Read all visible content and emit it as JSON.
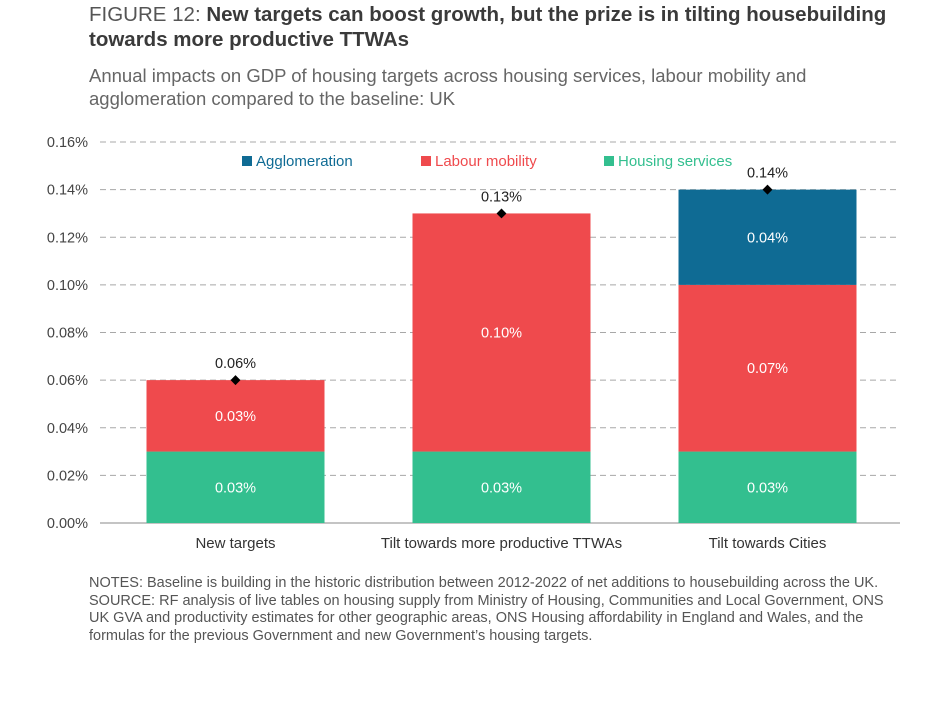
{
  "figure": {
    "prefix": "FIGURE 12: ",
    "title": "New targets can boost growth, but the prize is in tilting housebuilding towards more productive TTWAs",
    "subtitle": "Annual impacts on GDP of housing targets across housing services, labour mobility and agglomeration compared to the baseline: UK"
  },
  "chart_data": {
    "type": "bar",
    "stacked": true,
    "categories": [
      "New targets",
      "Tilt towards more productive TTWAs",
      "Tilt towards Cities"
    ],
    "series": [
      {
        "name": "Housing services",
        "color": "#33bf8f",
        "values": [
          0.03,
          0.03,
          0.03
        ],
        "labels": [
          "0.03%",
          "0.03%",
          "0.03%"
        ]
      },
      {
        "name": "Labour mobility",
        "color": "#ef4a4d",
        "values": [
          0.03,
          0.1,
          0.07
        ],
        "labels": [
          "0.03%",
          "0.10%",
          "0.07%"
        ]
      },
      {
        "name": "Agglomeration",
        "color": "#0f6b94",
        "values": [
          0,
          0,
          0.04
        ],
        "labels": [
          "",
          "",
          "0.04%"
        ]
      }
    ],
    "totals": [
      0.06,
      0.13,
      0.14
    ],
    "total_labels": [
      "0.06%",
      "0.13%",
      "0.14%"
    ],
    "ylim": [
      0,
      0.16
    ],
    "yticks": [
      "0.00%",
      "0.02%",
      "0.04%",
      "0.06%",
      "0.08%",
      "0.10%",
      "0.12%",
      "0.14%",
      "0.16%"
    ],
    "legend_order": [
      "Agglomeration",
      "Labour mobility",
      "Housing services"
    ],
    "legend_position": "top-center",
    "grid": "horizontal dashed"
  },
  "notes": {
    "notes": "NOTES: Baseline is building in the historic distribution between 2012-2022 of net additions to housebuilding across the UK.",
    "source": "SOURCE: RF analysis of live tables on housing supply from Ministry of Housing, Communities and Local Government, ONS UK GVA and productivity estimates for other geographic areas, ONS Housing affordability in England and Wales, and the formulas for the previous Government and new Government’s housing targets."
  }
}
